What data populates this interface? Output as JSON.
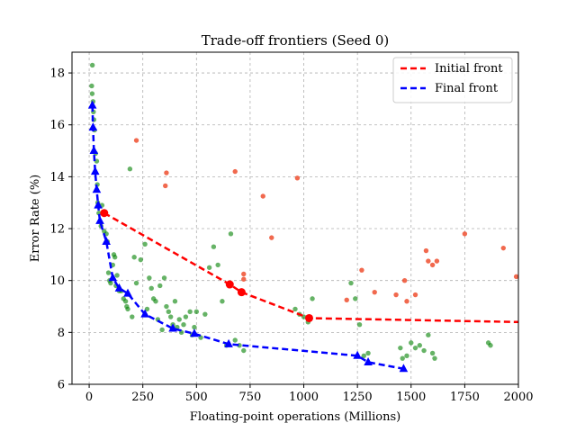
{
  "chart_data": {
    "type": "scatter",
    "title": "Trade-off frontiers (Seed 0)",
    "xlabel": "Floating-point operations (Millions)",
    "ylabel": "Error Rate (%)",
    "xlim": [
      -80,
      2000
    ],
    "ylim": [
      6,
      18.8
    ],
    "x_ticks": [
      0,
      250,
      500,
      750,
      1000,
      1250,
      1500,
      1750,
      2000
    ],
    "y_ticks": [
      6,
      8,
      10,
      12,
      14,
      16,
      18
    ],
    "grid": true,
    "legend_position": "top-right",
    "colors": {
      "initial": "#ff0000",
      "final": "#0000ff",
      "green_points": "#008000",
      "orange_points": "#ee4422",
      "grid": "#b0b0b0"
    },
    "series": [
      {
        "name": "Initial front",
        "style": "dashed-line",
        "color": "#ff0000",
        "x": [
          70,
          655,
          710,
          1025,
          2000
        ],
        "y": [
          12.6,
          9.85,
          9.55,
          8.55,
          8.4
        ]
      },
      {
        "name": "Final front",
        "style": "dashed-line",
        "color": "#0000ff",
        "x": [
          15,
          18,
          22,
          28,
          35,
          42,
          50,
          80,
          110,
          140,
          180,
          260,
          390,
          490,
          650,
          1250,
          1300,
          1465
        ],
        "y": [
          16.75,
          15.9,
          15.0,
          14.2,
          13.5,
          12.9,
          12.3,
          11.5,
          10.1,
          9.7,
          9.5,
          8.7,
          8.15,
          7.95,
          7.55,
          7.1,
          6.85,
          6.6
        ]
      },
      {
        "name": "",
        "style": "scatter-red-dots",
        "color": "#ff0000",
        "x": [
          70,
          655,
          710,
          1025
        ],
        "y": [
          12.6,
          9.85,
          9.55,
          8.55
        ]
      },
      {
        "name": "",
        "style": "scatter-blue-triangles",
        "color": "#0000ff",
        "x": [
          15,
          18,
          22,
          28,
          35,
          42,
          50,
          80,
          110,
          140,
          180,
          260,
          390,
          490,
          650,
          1250,
          1300,
          1465
        ],
        "y": [
          16.75,
          15.9,
          15.0,
          14.2,
          13.5,
          12.9,
          12.3,
          11.5,
          10.1,
          9.7,
          9.5,
          8.7,
          8.15,
          7.95,
          7.55,
          7.1,
          6.85,
          6.6
        ]
      },
      {
        "name": "",
        "style": "scatter-small-orange",
        "color": "#ee4422",
        "x": [
          220,
          360,
          355,
          680,
          810,
          850,
          970,
          720,
          720,
          1200,
          1270,
          1330,
          1430,
          1480,
          1520,
          1570,
          1580,
          1600,
          1750,
          1930,
          1990,
          1620,
          1470
        ],
        "y": [
          15.4,
          14.15,
          13.65,
          14.2,
          13.25,
          11.65,
          13.95,
          10.25,
          10.05,
          9.25,
          10.4,
          9.55,
          9.45,
          9.2,
          9.45,
          11.15,
          10.75,
          10.6,
          11.8,
          11.25,
          10.15,
          10.75,
          10.0
        ]
      },
      {
        "name": "",
        "style": "scatter-small-green",
        "color": "#008000",
        "x": [
          15,
          12,
          14,
          18,
          20,
          22,
          25,
          30,
          35,
          38,
          40,
          45,
          55,
          60,
          70,
          80,
          85,
          90,
          95,
          100,
          110,
          115,
          120,
          125,
          130,
          140,
          150,
          160,
          170,
          175,
          180,
          190,
          200,
          210,
          220,
          240,
          260,
          270,
          280,
          290,
          300,
          310,
          320,
          330,
          340,
          350,
          360,
          370,
          380,
          390,
          400,
          410,
          420,
          430,
          440,
          450,
          470,
          480,
          490,
          500,
          520,
          540,
          560,
          580,
          600,
          620,
          640,
          660,
          680,
          700,
          720,
          960,
          980,
          1000,
          1020,
          1040,
          1220,
          1240,
          1260,
          1280,
          1300,
          1450,
          1460,
          1480,
          1500,
          1520,
          1540,
          1560,
          1580,
          1600,
          1610,
          1860,
          1870
        ],
        "y": [
          18.3,
          17.5,
          17.2,
          16.9,
          16.5,
          16.2,
          15.8,
          14.9,
          14.6,
          13.7,
          13.0,
          12.6,
          12.1,
          12.9,
          11.9,
          11.8,
          11.5,
          10.3,
          10.0,
          9.9,
          10.6,
          11.0,
          10.9,
          9.8,
          10.2,
          9.6,
          9.6,
          9.3,
          9.2,
          9.0,
          8.9,
          14.3,
          8.6,
          10.9,
          9.9,
          10.8,
          11.4,
          8.9,
          10.1,
          9.7,
          9.3,
          9.2,
          8.5,
          9.8,
          8.1,
          10.1,
          9.0,
          8.8,
          8.6,
          8.3,
          9.2,
          8.2,
          8.5,
          8.0,
          8.3,
          8.6,
          8.8,
          7.9,
          8.2,
          8.8,
          7.8,
          8.7,
          10.5,
          11.3,
          10.6,
          9.2,
          7.5,
          11.8,
          7.7,
          7.5,
          7.3,
          8.9,
          8.7,
          8.6,
          8.4,
          9.3,
          9.9,
          9.3,
          8.3,
          7.1,
          7.2,
          7.4,
          7.0,
          7.1,
          7.6,
          7.4,
          7.5,
          7.3,
          7.9,
          7.2,
          7.0,
          7.6,
          7.5
        ]
      }
    ]
  }
}
